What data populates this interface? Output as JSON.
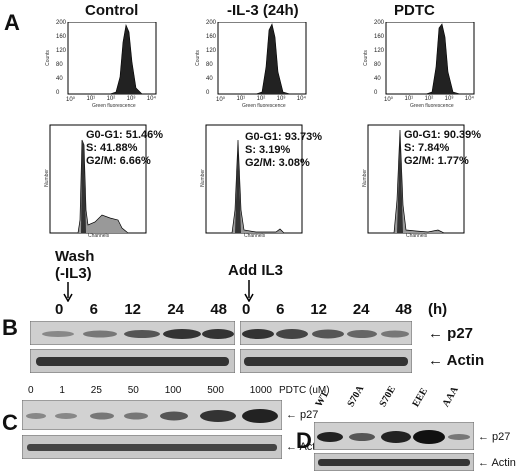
{
  "panelA": {
    "letter": "A",
    "columns": [
      {
        "title": "Control",
        "xlabel": "Green fluorescence",
        "ylabel": "Counts",
        "stats": [
          "G0-G1: 51.46%",
          "S: 41.88%",
          "G2/M: 6.66%"
        ]
      },
      {
        "title": "-IL-3 (24h)",
        "xlabel": "Green fluorescence",
        "ylabel": "Counts",
        "stats": [
          "G0-G1: 93.73%",
          "S: 3.19%",
          "G2/M: 3.08%"
        ]
      },
      {
        "title": "PDTC",
        "xlabel": "Green fluorescence",
        "ylabel": "Counts",
        "stats": [
          "G0-G1: 90.39%",
          "S: 7.84%",
          "G2/M: 1.77%"
        ]
      }
    ],
    "hist_yticks": [
      "200",
      "160",
      "120",
      "80",
      "40",
      "0"
    ],
    "hist_xticks": [
      "10⁰",
      "10¹",
      "10²",
      "10³",
      "10⁴"
    ],
    "cc_xlabel": "Channels",
    "cc_ylabel": "Number"
  },
  "panelB": {
    "letter": "B",
    "wash_label": "Wash",
    "wash_sub": "(-IL3)",
    "add_label": "Add IL3",
    "time_left": [
      "0",
      "6",
      "12",
      "24",
      "48"
    ],
    "time_right": [
      "0",
      "6",
      "12",
      "24",
      "48"
    ],
    "unit": "(h)",
    "p27_label": "← p27",
    "actin_label": "← Actin"
  },
  "panelC": {
    "letter": "C",
    "concentrations": [
      "0",
      "1",
      "25",
      "50",
      "100",
      "500",
      "1000"
    ],
    "unit": "PDTC (uM)",
    "p27_label": "← p27",
    "actin_label": "← Actin"
  },
  "panelD": {
    "letter": "D",
    "lanes": [
      "WT",
      "S70A",
      "S70E",
      "EEE",
      "AAA"
    ],
    "p27_label": "← p27",
    "actin_label": "← Actin"
  }
}
